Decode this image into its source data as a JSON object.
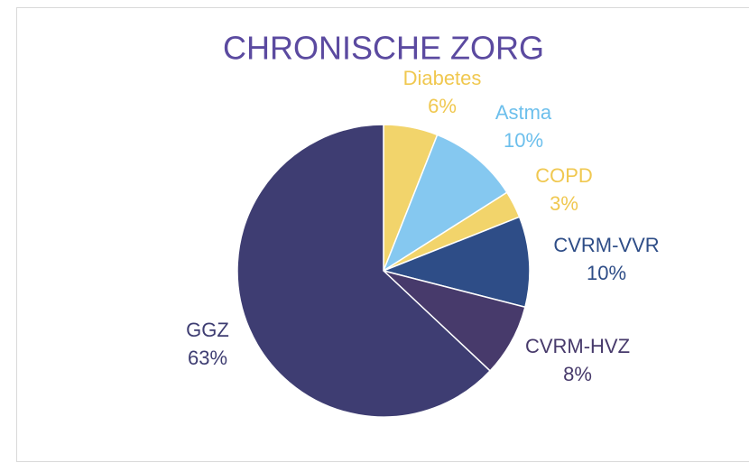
{
  "chart_data": {
    "type": "pie",
    "title": "CHRONISCHE ZORG",
    "categories": [
      "Diabetes",
      "Astma",
      "COPD",
      "CVRM-VVR",
      "CVRM-HVZ",
      "GGZ"
    ],
    "values": [
      6,
      10,
      3,
      10,
      8,
      63
    ],
    "value_labels": [
      "6%",
      "10%",
      "3%",
      "10%",
      "8%",
      "63%"
    ],
    "colors": [
      "#f2d46b",
      "#85c8f0",
      "#f2d46b",
      "#2e4d87",
      "#473a6b",
      "#3e3d72"
    ],
    "label_colors": [
      "#f0c850",
      "#6cbfec",
      "#f0c850",
      "#2e4d87",
      "#473a6b",
      "#3e3d72"
    ]
  }
}
